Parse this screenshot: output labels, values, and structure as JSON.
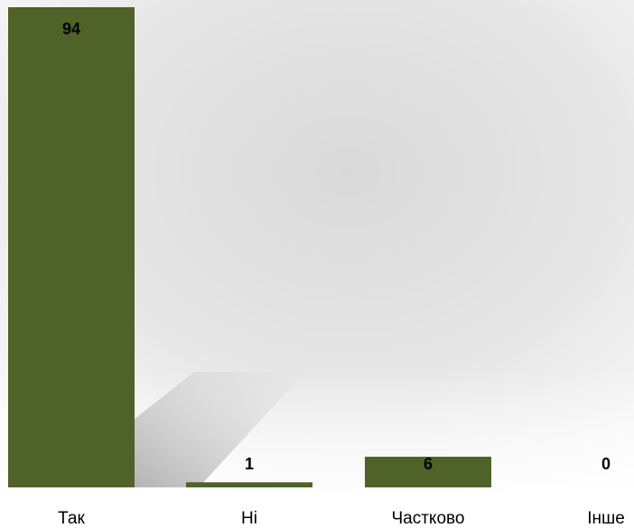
{
  "chart_data": {
    "type": "bar",
    "categories": [
      "Так",
      "Ні",
      "Частково",
      "Інше"
    ],
    "values": [
      94,
      1,
      6,
      0
    ],
    "title": "",
    "xlabel": "",
    "ylabel": "",
    "ylim": [
      0,
      94
    ],
    "grid": false,
    "legend": "none",
    "data_labels": true
  },
  "colors": {
    "bar": "#4f6228",
    "background_light": "#f2f2f2",
    "background_dark": "#d6d6d6"
  }
}
